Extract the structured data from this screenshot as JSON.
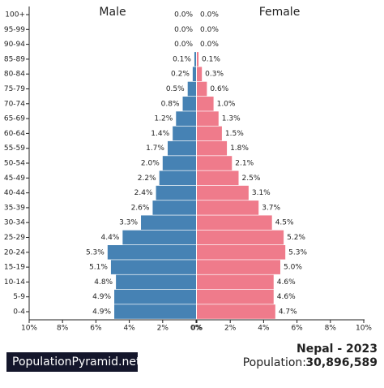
{
  "chart_data": {
    "type": "pyramid",
    "title": "Nepal - 2023",
    "population_label": "Population:",
    "population": "30,896,589",
    "brand": "PopulationPyramid.net",
    "categories": [
      "0-4",
      "5-9",
      "10-14",
      "15-19",
      "20-24",
      "25-29",
      "30-34",
      "35-39",
      "40-44",
      "45-49",
      "50-54",
      "55-59",
      "60-64",
      "65-69",
      "70-74",
      "75-79",
      "80-84",
      "85-89",
      "90-94",
      "95-99",
      "100+"
    ],
    "series": [
      {
        "name": "Male",
        "color": "#4682b4",
        "side": "left",
        "values": [
          4.9,
          4.9,
          4.8,
          5.1,
          5.3,
          4.4,
          3.3,
          2.6,
          2.4,
          2.2,
          2.0,
          1.7,
          1.4,
          1.2,
          0.8,
          0.5,
          0.2,
          0.1,
          0.0,
          0.0,
          0.0
        ],
        "value_labels": [
          "4.9%",
          "4.9%",
          "4.8%",
          "5.1%",
          "5.3%",
          "4.4%",
          "3.3%",
          "2.6%",
          "2.4%",
          "2.2%",
          "2.0%",
          "1.7%",
          "1.4%",
          "1.2%",
          "0.8%",
          "0.5%",
          "0.2%",
          "0.1%",
          "0.0%",
          "0.0%",
          "0.0%"
        ]
      },
      {
        "name": "Female",
        "color": "#ef7b8b",
        "side": "right",
        "values": [
          4.7,
          4.6,
          4.6,
          5.0,
          5.3,
          5.2,
          4.5,
          3.7,
          3.1,
          2.5,
          2.1,
          1.8,
          1.5,
          1.3,
          1.0,
          0.6,
          0.3,
          0.1,
          0.0,
          0.0,
          0.0
        ],
        "value_labels": [
          "4.7%",
          "4.6%",
          "4.6%",
          "5.0%",
          "5.3%",
          "5.2%",
          "4.5%",
          "3.7%",
          "3.1%",
          "2.5%",
          "2.1%",
          "1.8%",
          "1.5%",
          "1.3%",
          "1.0%",
          "0.6%",
          "0.3%",
          "0.1%",
          "0.0%",
          "0.0%",
          "0.0%"
        ]
      }
    ],
    "xlim": [
      0,
      10
    ],
    "xticks": [
      {
        "value": 0,
        "label": "0%"
      },
      {
        "value": 2,
        "label": "2%"
      },
      {
        "value": 4,
        "label": "4%"
      },
      {
        "value": 6,
        "label": "6%"
      },
      {
        "value": 8,
        "label": "8%"
      },
      {
        "value": 10,
        "label": "10%"
      }
    ]
  }
}
